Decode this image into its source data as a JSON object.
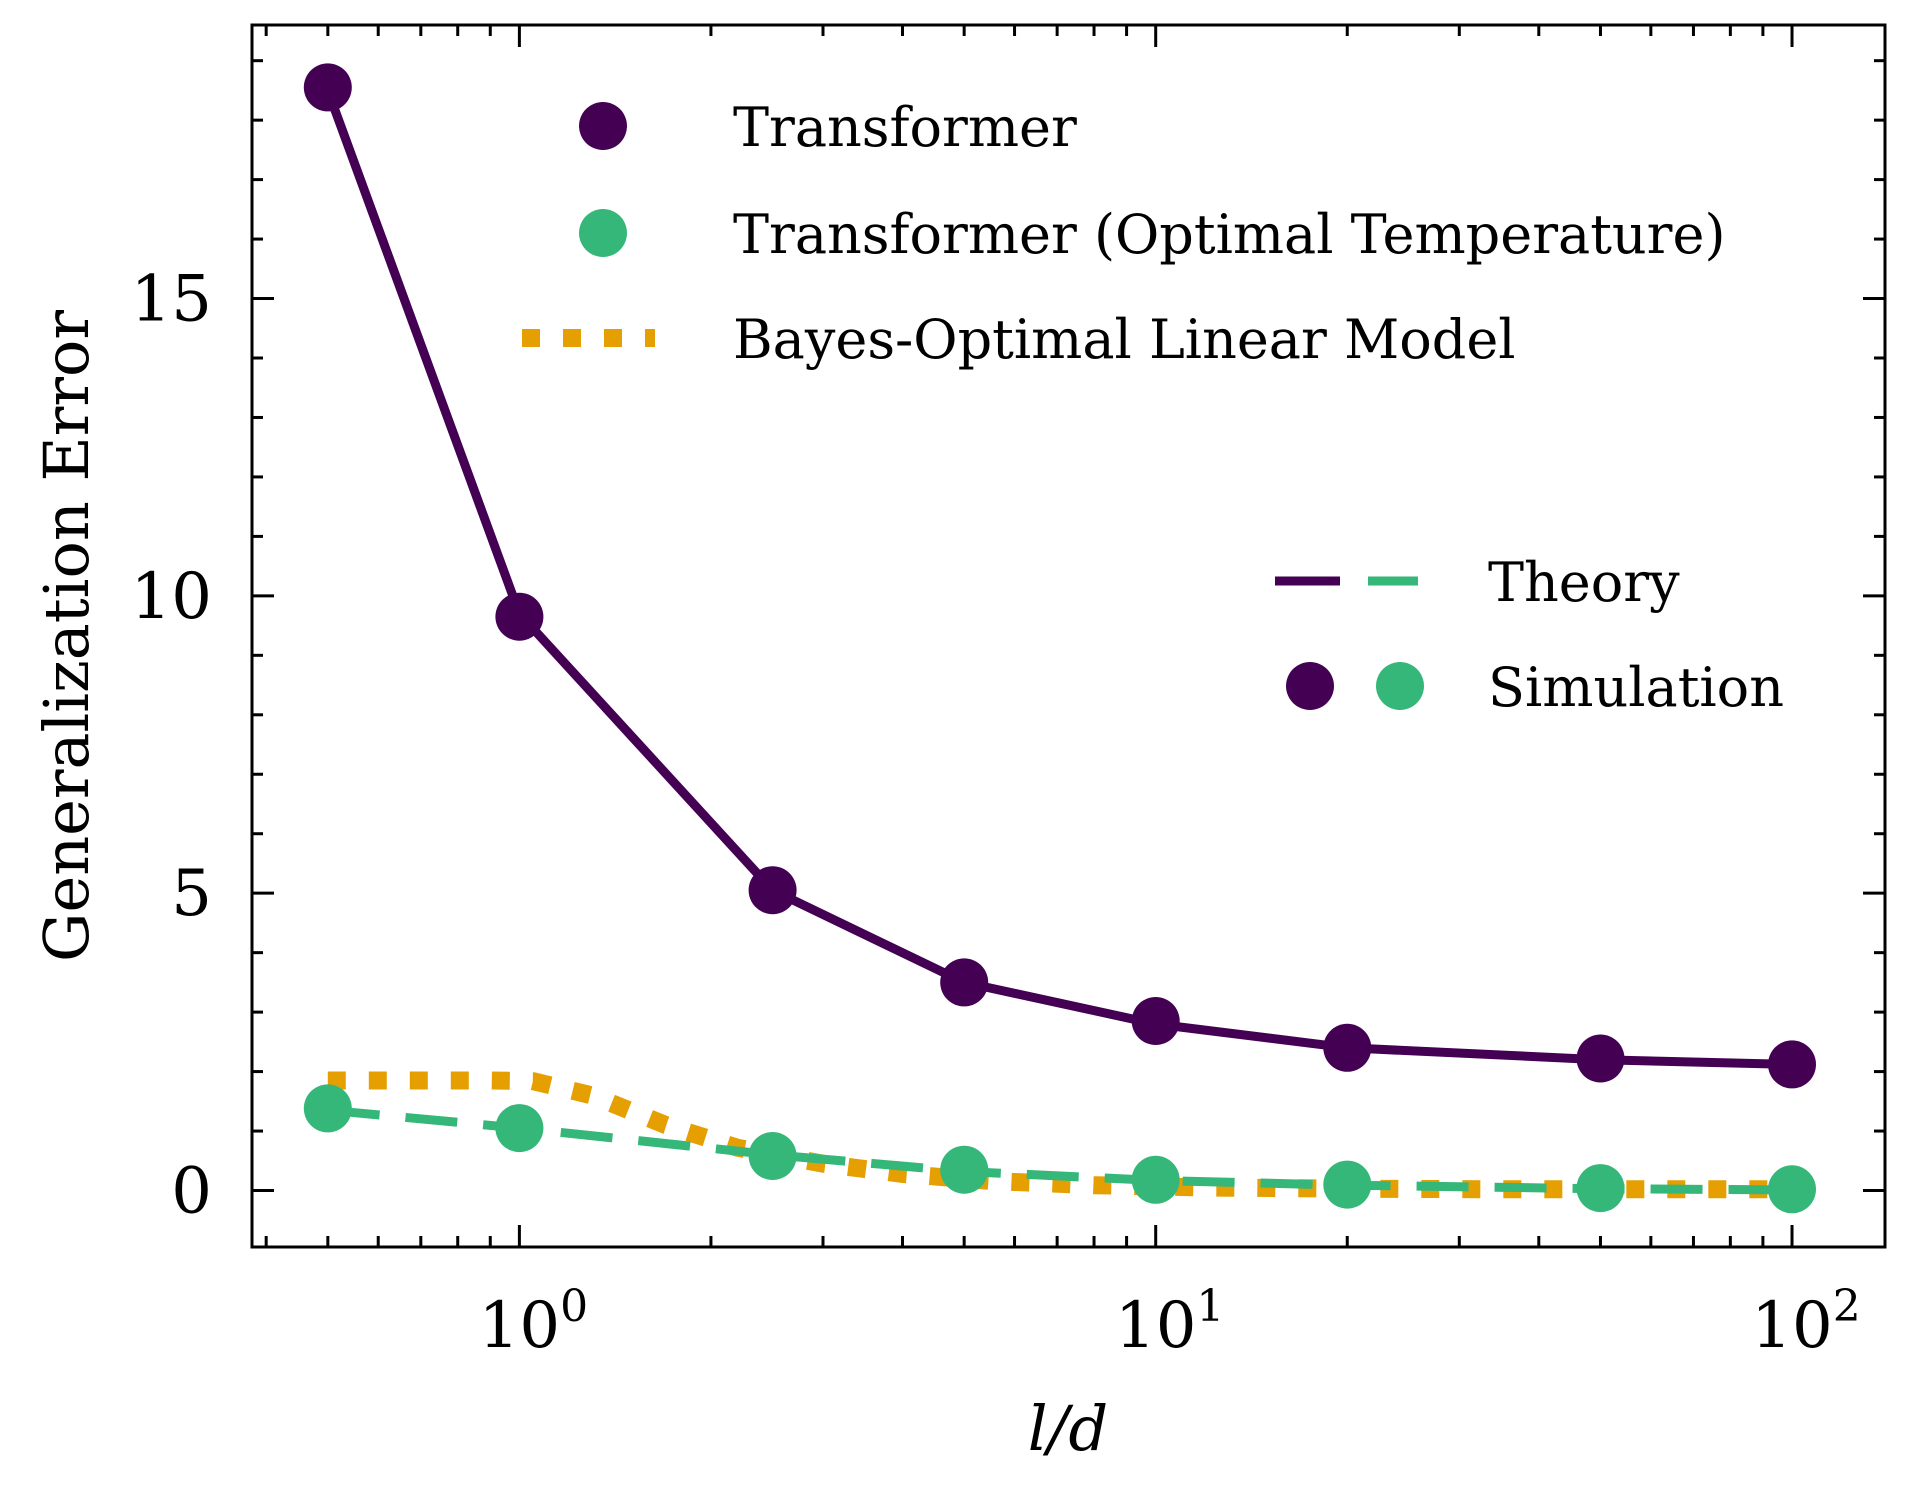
{
  "chart_data": {
    "type": "line",
    "xscale": "log",
    "xlabel": "l/d",
    "ylabel": "Generalization Error",
    "xlim": [
      0.38,
      140
    ],
    "ylim": [
      -0.95,
      19.6
    ],
    "x_ticks": [
      {
        "value": 1,
        "base": "10",
        "exp": "0"
      },
      {
        "value": 10,
        "base": "10",
        "exp": "1"
      },
      {
        "value": 100,
        "base": "10",
        "exp": "2"
      }
    ],
    "y_ticks": [
      {
        "value": 0,
        "label": "0"
      },
      {
        "value": 5,
        "label": "5"
      },
      {
        "value": 10,
        "label": "10"
      },
      {
        "value": 15,
        "label": "15"
      }
    ],
    "x": [
      0.5,
      1,
      2.5,
      5,
      10,
      20,
      50,
      100
    ],
    "series": [
      {
        "name": "Transformer",
        "color": "#440154",
        "theory_style": "solid",
        "theory_values": [
          18.5,
          9.7,
          5.05,
          3.5,
          2.8,
          2.4,
          2.2,
          2.12
        ],
        "simulation_values": [
          18.55,
          9.65,
          5.05,
          3.5,
          2.85,
          2.4,
          2.22,
          2.12
        ]
      },
      {
        "name": "Transformer (Optimal Temperature)",
        "color": "#35b779",
        "theory_style": "dashed",
        "theory_values": [
          1.35,
          1.05,
          0.6,
          0.32,
          0.17,
          0.09,
          0.03,
          0.01
        ],
        "simulation_values": [
          1.38,
          1.05,
          0.58,
          0.35,
          0.18,
          0.1,
          0.04,
          0.02
        ]
      },
      {
        "name": "Bayes-Optimal Linear Model",
        "color": "#e69f00",
        "theory_style": "dotted",
        "x": [
          0.5,
          0.7,
          0.9,
          1.05,
          1.3,
          1.7,
          2.2,
          3,
          4,
          5.5,
          8,
          12,
          20,
          35,
          60,
          100
        ],
        "theory_values": [
          1.85,
          1.85,
          1.85,
          1.84,
          1.6,
          1.1,
          0.72,
          0.45,
          0.28,
          0.16,
          0.09,
          0.05,
          0.03,
          0.02,
          0.02,
          0.02
        ]
      }
    ],
    "legend_top": {
      "position": "top-center",
      "entries": [
        "Transformer",
        "Transformer (Optimal Temperature)",
        "Bayes-Optimal Linear Model"
      ]
    },
    "legend_right": {
      "position": "center-right",
      "entries": [
        "Theory",
        "Simulation"
      ]
    }
  }
}
